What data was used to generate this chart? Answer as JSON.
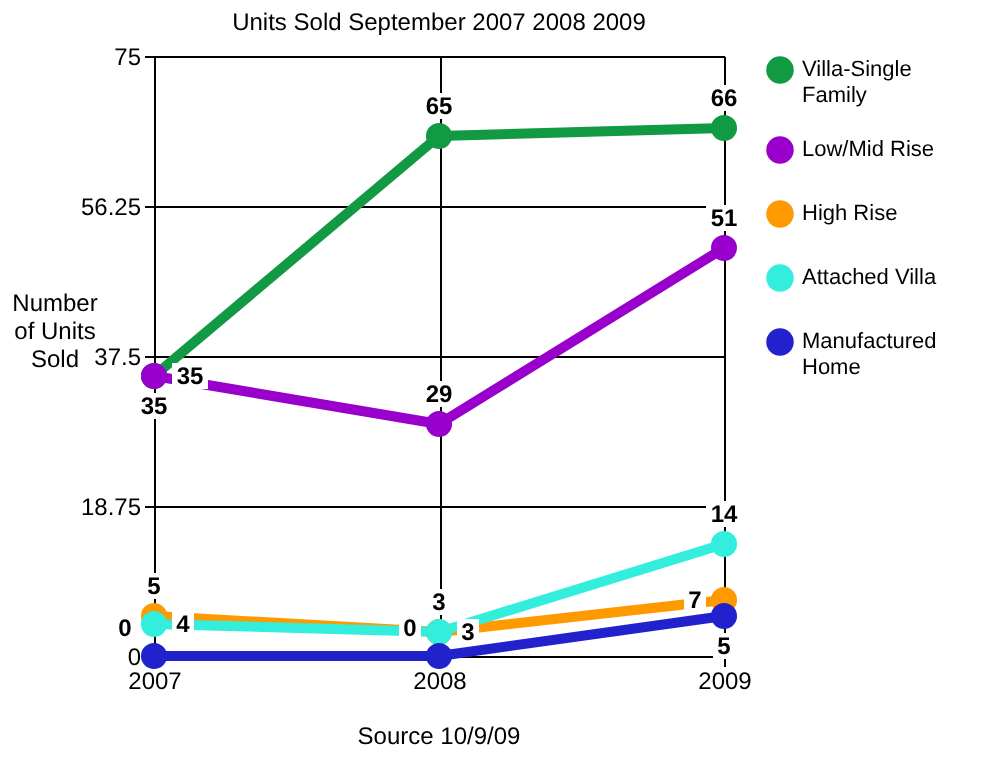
{
  "chart_data": {
    "type": "line",
    "title": "Units Sold September 2007 2008 2009",
    "ylabel": "Number of Units Sold",
    "categories": [
      "2007",
      "2008",
      "2009"
    ],
    "series": [
      {
        "name": "Villa-Single Family",
        "color": "#119944",
        "values": [
          35,
          65,
          66
        ]
      },
      {
        "name": "Low/Mid Rise",
        "color": "#9900cc",
        "values": [
          35,
          29,
          51
        ]
      },
      {
        "name": "High Rise",
        "color": "#ff9900",
        "values": [
          5,
          3,
          7
        ]
      },
      {
        "name": "Attached Villa",
        "color": "#33eedd",
        "values": [
          4,
          3,
          14
        ]
      },
      {
        "name": "Manufactured Home",
        "color": "#2222cc",
        "values": [
          0,
          0,
          5
        ]
      }
    ],
    "ylim": [
      0,
      75
    ],
    "yticks": [
      0,
      18.75,
      37.5,
      56.25,
      75
    ],
    "grid": true,
    "legend": "right",
    "marker": "circle",
    "line_style": "solid",
    "data_labels": true,
    "annotations": [
      "Source 10/9/09"
    ]
  }
}
